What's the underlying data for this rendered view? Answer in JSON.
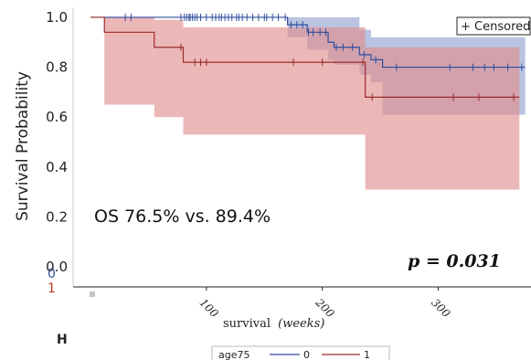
{
  "panel_letter": "H",
  "chart_data": {
    "type": "line",
    "subtype": "kaplan-meier",
    "xlabel": "survival",
    "xlabel_unit": "(weeks)",
    "ylabel": "Survival Probability",
    "xlim": [
      -15,
      380
    ],
    "ylim": [
      -0.08,
      1.04
    ],
    "x_ticks": [
      "100",
      "200",
      "300"
    ],
    "x_tick_values": [
      100,
      200,
      300
    ],
    "y_ticks": [
      "1.0",
      "0.8",
      "0.6",
      "0.4",
      "0.2",
      "0.0"
    ],
    "y_tick_values": [
      1.0,
      0.8,
      0.6,
      0.4,
      0.2,
      0.0
    ],
    "risk_labels": [
      "0",
      "1"
    ],
    "censored_label": "+ Censored",
    "annotation_os": "OS 76.5% vs. 89.4%",
    "annotation_p": "p = 0.031",
    "legend": {
      "title": "age75",
      "entries": [
        "0",
        "1"
      ],
      "placement": "bottom-center"
    },
    "grid": false,
    "series": [
      {
        "name": "0",
        "color": "#2e4e9c",
        "band_color": "#8f9fd0",
        "steps": [
          [
            0,
            1.0
          ],
          [
            170,
            0.97
          ],
          [
            187,
            0.94
          ],
          [
            205,
            0.9
          ],
          [
            210,
            0.88
          ],
          [
            232,
            0.85
          ],
          [
            242,
            0.83
          ],
          [
            252,
            0.8
          ],
          [
            375,
            0.8
          ]
        ],
        "ci": [
          [
            0,
            1.0,
            1.0
          ],
          [
            170,
            0.92,
            1.0
          ],
          [
            187,
            0.87,
            1.0
          ],
          [
            205,
            0.83,
            1.0
          ],
          [
            210,
            0.81,
            1.0
          ],
          [
            232,
            0.77,
            0.95
          ],
          [
            242,
            0.74,
            0.92
          ],
          [
            252,
            0.61,
            0.92
          ],
          [
            375,
            0.61,
            0.92
          ]
        ],
        "censored": [
          30,
          35,
          78,
          81,
          83,
          85,
          86,
          88,
          90,
          92,
          95,
          100,
          105,
          108,
          111,
          113,
          116,
          119,
          122,
          126,
          128,
          131,
          135,
          140,
          145,
          150,
          152,
          157,
          162,
          168,
          173,
          178,
          183,
          188,
          192,
          198,
          203,
          212,
          218,
          226,
          236,
          246,
          264,
          310,
          330,
          340,
          348,
          360,
          372
        ]
      },
      {
        "name": "1",
        "color": "#9c2b2b",
        "band_color": "#e08a8a",
        "steps": [
          [
            0,
            1.0
          ],
          [
            12,
            0.94
          ],
          [
            55,
            0.88
          ],
          [
            80,
            0.82
          ],
          [
            237,
            0.68
          ],
          [
            370,
            0.68
          ]
        ],
        "ci": [
          [
            0,
            1.0,
            1.0
          ],
          [
            12,
            0.65,
            1.0
          ],
          [
            55,
            0.6,
            0.99
          ],
          [
            80,
            0.53,
            0.96
          ],
          [
            237,
            0.31,
            0.88
          ],
          [
            370,
            0.31,
            0.88
          ]
        ],
        "censored": [
          78,
          90,
          95,
          100,
          175,
          200,
          235,
          243,
          313,
          335,
          365
        ]
      }
    ]
  }
}
